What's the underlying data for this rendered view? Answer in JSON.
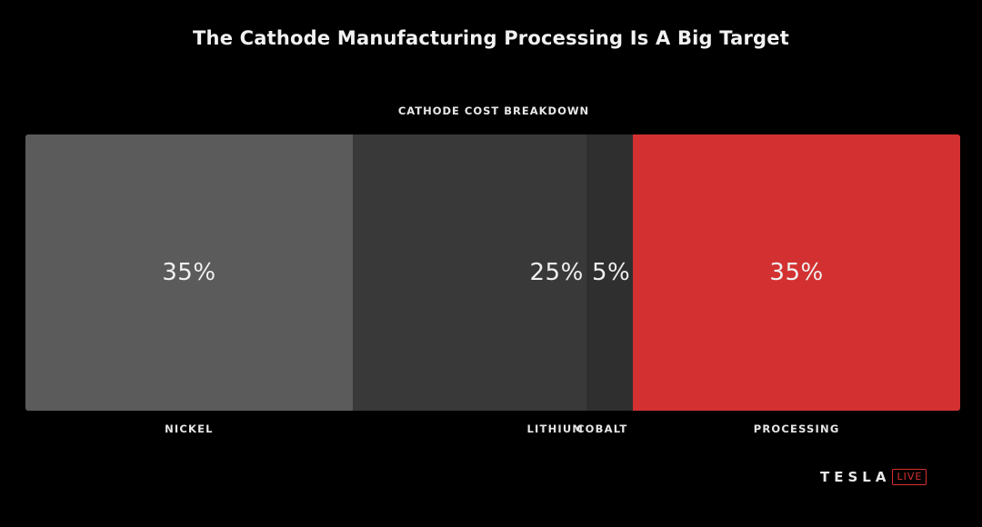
{
  "slide": {
    "title": "The Cathode Manufacturing Processing Is A Big Target",
    "brand": {
      "wordmark": "TESLA",
      "badge": "LIVE"
    }
  },
  "chart_data": {
    "type": "bar",
    "subtype": "100% stacked horizontal bar",
    "title": "CATHODE COST BREAKDOWN",
    "categories": [
      "NICKEL",
      "LITHIUM",
      "COBALT",
      "PROCESSING"
    ],
    "values": [
      35,
      25,
      5,
      35
    ],
    "value_labels": [
      "35%",
      "25%",
      "5%",
      "35%"
    ],
    "colors": [
      "#5b5b5b",
      "#393939",
      "#2f2f2f",
      "#d33131"
    ],
    "value_label_align": [
      "center",
      "right",
      "right",
      "center"
    ],
    "legend": "none",
    "grid": false
  }
}
